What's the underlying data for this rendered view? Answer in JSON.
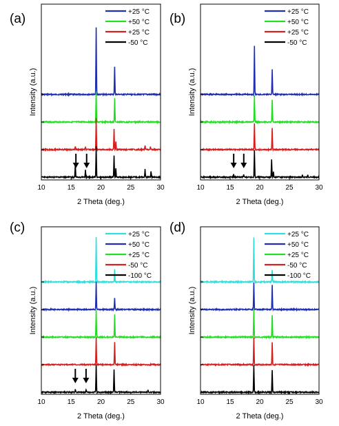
{
  "chart_data": [
    {
      "type": "line",
      "panel_label": "(a)",
      "xlabel": "2 Theta (deg.)",
      "ylabel": "Intensity (a.u.)",
      "xlim": [
        10,
        30
      ],
      "xticks": [
        10,
        15,
        20,
        25,
        30
      ],
      "grid": false,
      "legend_position": "top-right",
      "series": [
        {
          "name": "+25 °C",
          "color": "#1f2fb0",
          "baseline": 3,
          "peaks": [
            {
              "x": 19.2,
              "h": 2.4
            },
            {
              "x": 22.3,
              "h": 1.0
            }
          ]
        },
        {
          "name": "+50 °C",
          "color": "#22dd22",
          "baseline": 2,
          "peaks": [
            {
              "x": 19.2,
              "h": 1.1
            },
            {
              "x": 22.3,
              "h": 0.85
            }
          ]
        },
        {
          "name": "+25 °C",
          "color": "#d42020",
          "baseline": 1,
          "peaks": [
            {
              "x": 15.7,
              "h": 0.12
            },
            {
              "x": 17.4,
              "h": 0.1
            },
            {
              "x": 19.2,
              "h": 1.1
            },
            {
              "x": 22.2,
              "h": 0.75
            },
            {
              "x": 22.5,
              "h": 0.3
            },
            {
              "x": 27.4,
              "h": 0.15
            },
            {
              "x": 28.3,
              "h": 0.1
            }
          ]
        },
        {
          "name": "-50 °C",
          "color": "#000000",
          "baseline": 0,
          "peaks": [
            {
              "x": 15.7,
              "h": 0.45
            },
            {
              "x": 17.4,
              "h": 0.25
            },
            {
              "x": 19.2,
              "h": 1.1
            },
            {
              "x": 22.2,
              "h": 0.75
            },
            {
              "x": 22.5,
              "h": 0.3
            },
            {
              "x": 27.4,
              "h": 0.28
            },
            {
              "x": 28.4,
              "h": 0.22
            }
          ]
        }
      ],
      "annotations": [
        {
          "type": "arrow",
          "x": 15.8
        },
        {
          "type": "arrow",
          "x": 17.6
        }
      ]
    },
    {
      "type": "line",
      "panel_label": "(b)",
      "xlabel": "2 Theta (deg.)",
      "ylabel": "Intensity (a.u.)",
      "xlim": [
        10,
        30
      ],
      "xticks": [
        10,
        15,
        20,
        25,
        30
      ],
      "grid": false,
      "legend_position": "top-right",
      "series": [
        {
          "name": "+25 °C",
          "color": "#1f2fb0",
          "baseline": 3,
          "peaks": [
            {
              "x": 19.1,
              "h": 2.0
            },
            {
              "x": 22.1,
              "h": 1.05
            }
          ]
        },
        {
          "name": "+50 °C",
          "color": "#22dd22",
          "baseline": 2,
          "peaks": [
            {
              "x": 19.1,
              "h": 1.1
            },
            {
              "x": 22.1,
              "h": 0.9
            }
          ]
        },
        {
          "name": "+25 °C",
          "color": "#d42020",
          "baseline": 1,
          "peaks": [
            {
              "x": 19.1,
              "h": 1.1
            },
            {
              "x": 22.1,
              "h": 0.9
            }
          ]
        },
        {
          "name": "-50 °C",
          "color": "#000000",
          "baseline": 0,
          "peaks": [
            {
              "x": 15.6,
              "h": 0.12
            },
            {
              "x": 17.3,
              "h": 0.1
            },
            {
              "x": 19.1,
              "h": 1.1
            },
            {
              "x": 22.0,
              "h": 0.75
            },
            {
              "x": 22.3,
              "h": 0.25
            },
            {
              "x": 27.2,
              "h": 0.12
            },
            {
              "x": 28.1,
              "h": 0.08
            }
          ]
        }
      ],
      "annotations": [
        {
          "type": "arrow",
          "x": 15.6
        },
        {
          "type": "arrow",
          "x": 17.3
        }
      ]
    },
    {
      "type": "line",
      "panel_label": "(c)",
      "xlabel": "2 Theta (deg.)",
      "ylabel": "Intensity (a.u.)",
      "xlim": [
        10,
        30
      ],
      "xticks": [
        10,
        15,
        20,
        25,
        30
      ],
      "grid": false,
      "legend_position": "top-right",
      "series": [
        {
          "name": "+25 °C",
          "color": "#33dddd",
          "baseline": 4,
          "peaks": [
            {
              "x": 19.2,
              "h": 1.8
            },
            {
              "x": 22.3,
              "h": 0.5
            }
          ]
        },
        {
          "name": "+50 °C",
          "color": "#1f2fb0",
          "baseline": 3,
          "peaks": [
            {
              "x": 19.2,
              "h": 1.1
            },
            {
              "x": 22.3,
              "h": 0.45
            }
          ]
        },
        {
          "name": "+25 °C",
          "color": "#22dd22",
          "baseline": 2,
          "peaks": [
            {
              "x": 19.2,
              "h": 1.1
            },
            {
              "x": 22.3,
              "h": 0.9
            }
          ]
        },
        {
          "name": "-50 °C",
          "color": "#d42020",
          "baseline": 1,
          "peaks": [
            {
              "x": 19.2,
              "h": 1.1
            },
            {
              "x": 22.3,
              "h": 0.9
            }
          ]
        },
        {
          "name": "-100 °C",
          "color": "#000000",
          "baseline": 0,
          "peaks": [
            {
              "x": 15.7,
              "h": 0.12
            },
            {
              "x": 17.5,
              "h": 0.1
            },
            {
              "x": 19.2,
              "h": 1.1
            },
            {
              "x": 22.2,
              "h": 0.9
            },
            {
              "x": 27.9,
              "h": 0.08
            }
          ]
        }
      ],
      "annotations": [
        {
          "type": "arrow",
          "x": 15.7
        },
        {
          "type": "arrow",
          "x": 17.5
        }
      ]
    },
    {
      "type": "line",
      "panel_label": "(d)",
      "xlabel": "2 Theta (deg.)",
      "ylabel": "Intensity (a.u.)",
      "xlim": [
        10,
        30
      ],
      "xticks": [
        10,
        15,
        20,
        25,
        30
      ],
      "grid": false,
      "legend_position": "top-right",
      "series": [
        {
          "name": "+25 °C",
          "color": "#33dddd",
          "baseline": 4,
          "peaks": [
            {
              "x": 19.0,
              "h": 1.8
            },
            {
              "x": 22.1,
              "h": 0.5
            }
          ]
        },
        {
          "name": "+50 °C",
          "color": "#1f2fb0",
          "baseline": 3,
          "peaks": [
            {
              "x": 19.0,
              "h": 1.1
            },
            {
              "x": 22.1,
              "h": 1.0
            }
          ]
        },
        {
          "name": "+25 °C",
          "color": "#22dd22",
          "baseline": 2,
          "peaks": [
            {
              "x": 19.0,
              "h": 1.1
            },
            {
              "x": 22.1,
              "h": 0.9
            }
          ]
        },
        {
          "name": "-50 °C",
          "color": "#d42020",
          "baseline": 1,
          "peaks": [
            {
              "x": 19.0,
              "h": 1.1
            },
            {
              "x": 22.1,
              "h": 0.9
            }
          ]
        },
        {
          "name": "-100 °C",
          "color": "#000000",
          "baseline": 0,
          "peaks": [
            {
              "x": 19.0,
              "h": 1.1
            },
            {
              "x": 22.1,
              "h": 0.9
            }
          ]
        }
      ],
      "annotations": []
    }
  ]
}
